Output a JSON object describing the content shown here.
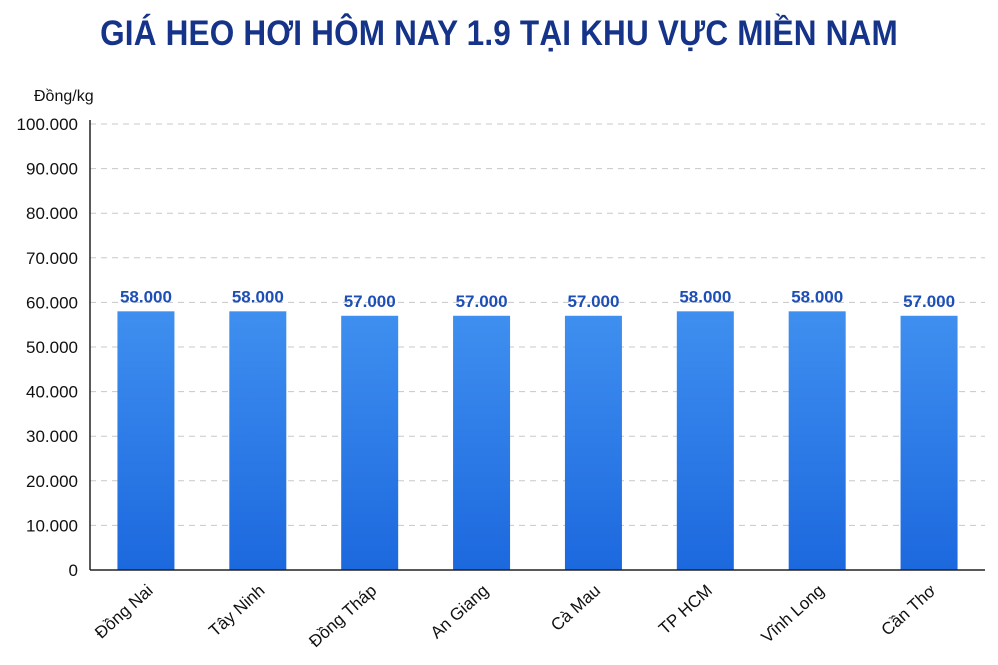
{
  "chart_data": {
    "type": "bar",
    "title": "GIÁ HEO HƠI HÔM NAY 1.9 TẠI KHU VỰC MIỀN NAM",
    "ylabel": "Đồng/kg",
    "xlabel": "",
    "categories": [
      "Đồng Nai",
      "Tây Ninh",
      "Đồng Tháp",
      "An Giang",
      "Cà Mau",
      "TP HCM",
      "Vĩnh Long",
      "Cần Thơ"
    ],
    "values": [
      58000,
      58000,
      57000,
      57000,
      57000,
      58000,
      58000,
      57000
    ],
    "value_labels": [
      "58.000",
      "58.000",
      "57.000",
      "57.000",
      "57.000",
      "58.000",
      "58.000",
      "57.000"
    ],
    "ylim": [
      0,
      100000
    ],
    "yticks": [
      0,
      10000,
      20000,
      30000,
      40000,
      50000,
      60000,
      70000,
      80000,
      90000,
      100000
    ],
    "ytick_labels": [
      "0",
      "10.000",
      "20.000",
      "30.000",
      "40.000",
      "50.000",
      "60.000",
      "70.000",
      "80.000",
      "90.000",
      "100.000"
    ],
    "grid": true,
    "legend": "none",
    "colors": {
      "bar_top": "#3f8ff0",
      "bar_bottom": "#1c68de",
      "title": "#16338a",
      "value_label": "#1d4fb8",
      "grid": "#c8c8c8",
      "axis": "#222222"
    }
  }
}
